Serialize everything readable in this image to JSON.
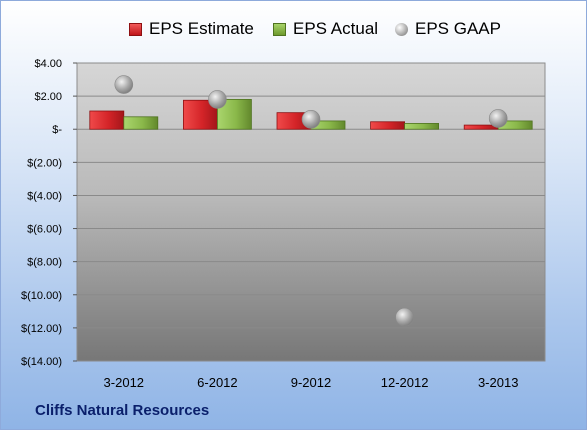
{
  "chart_data": {
    "type": "bar",
    "categories": [
      "3-2012",
      "6-2012",
      "9-2012",
      "12-2012",
      "3-2013"
    ],
    "series": [
      {
        "name": "EPS Estimate",
        "type": "bar",
        "values": [
          1.1,
          1.75,
          1.0,
          0.45,
          0.25
        ],
        "color": "#d42428"
      },
      {
        "name": "EPS Actual",
        "type": "bar",
        "values": [
          0.75,
          1.8,
          0.5,
          0.35,
          0.5
        ],
        "color": "#8ab84a"
      },
      {
        "name": "EPS GAAP",
        "type": "scatter",
        "values": [
          2.7,
          1.8,
          0.6,
          -11.35,
          0.65
        ],
        "color": "#a6a6a6"
      }
    ],
    "y_ticks": [
      "$4.00",
      "$2.00",
      "$-",
      "$(2.00)",
      "$(4.00)",
      "$(6.00)",
      "$(8.00)",
      "$(10.00)",
      "$(12.00)",
      "$(14.00)"
    ],
    "y_tick_values": [
      4,
      2,
      0,
      -2,
      -4,
      -6,
      -8,
      -10,
      -12,
      -14
    ],
    "ylim": [
      -14,
      4
    ],
    "grid": true,
    "legend_position": "top"
  },
  "footer": {
    "company": "Cliffs Natural Resources"
  }
}
